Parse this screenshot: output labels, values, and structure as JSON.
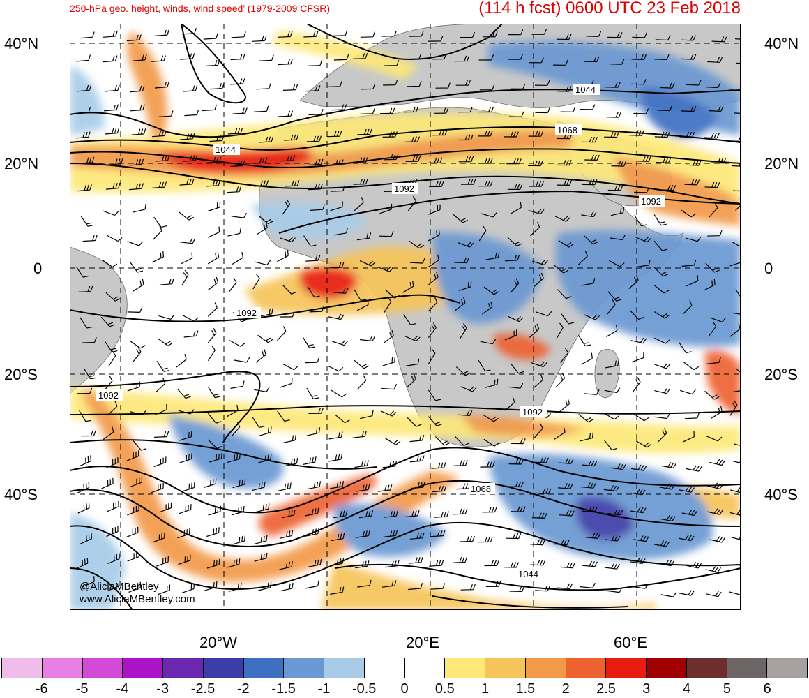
{
  "header": {
    "title_left": "250-hPa geo. height, winds, wind speed’ (1979-2009 CFSR)",
    "title_right": "(114 h fcst) 0600 UTC 23 Feb 2018"
  },
  "map": {
    "lat_labels": [
      "40°N",
      "20°N",
      "0",
      "20°S",
      "40°S"
    ],
    "lon_labels": [
      "20°W",
      "20°E",
      "60°E"
    ],
    "contour_labels": [
      "1044",
      "1068",
      "1044",
      "1092",
      "1092",
      "1092",
      "1092",
      "1092",
      "1068",
      "1044"
    ],
    "colors": {
      "land": "#c8c8c8",
      "ocean": "#ffffff",
      "contour": "#000000",
      "grid": "#000000"
    }
  },
  "colorbar": {
    "colors": [
      "#f0bcea",
      "#e87ee6",
      "#d44ad8",
      "#ac12c8",
      "#6a28b0",
      "#3c3ea8",
      "#3e6fc2",
      "#6a98d2",
      "#a8cce8",
      "#ffffff",
      "#ffffff",
      "#fde878",
      "#f6c45a",
      "#f39a48",
      "#ee6230",
      "#e81c10",
      "#a00000",
      "#6e2e2e",
      "#6e6666",
      "#a8a0a0"
    ],
    "labels": [
      "-6",
      "-5",
      "-4",
      "-3",
      "-2.5",
      "-2",
      "-1.5",
      "-1",
      "-0.5",
      "0",
      "0.5",
      "1",
      "1.5",
      "2",
      "2.5",
      "3",
      "4",
      "5",
      "6"
    ]
  },
  "credits": {
    "handle": "@AliciaMBentley",
    "website": "www.AliciaMBentley.com"
  }
}
